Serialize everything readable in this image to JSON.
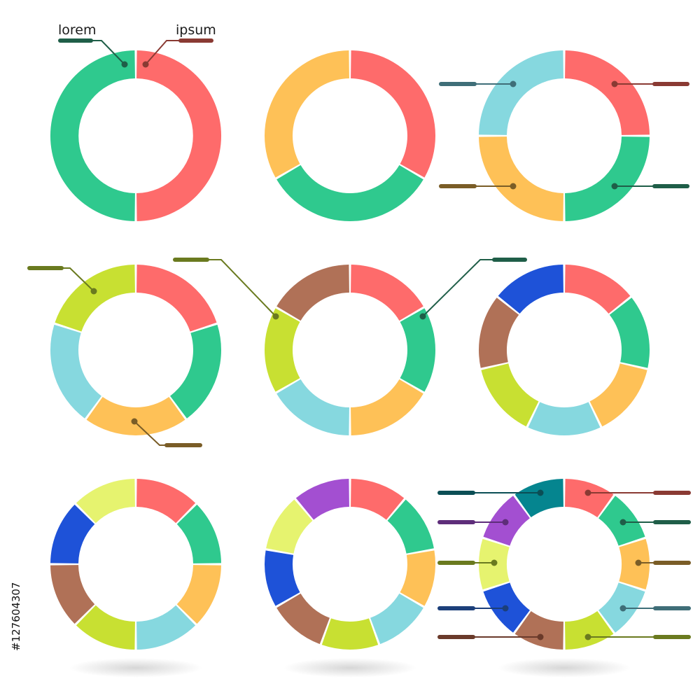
{
  "palette": {
    "red": "#fe6b6b",
    "green": "#2fc98e",
    "orange": "#fec157",
    "lightblue": "#86d8df",
    "yellowgreen": "#c8e032",
    "brown": "#b07157",
    "blue": "#1e52d8",
    "paleyellow": "#e6f36f",
    "purple": "#a34fd1",
    "teal": "#05858f"
  },
  "labels": {
    "left": "lorem",
    "right": "ipsum"
  },
  "watermark": "#127604307",
  "diagrams": [
    {
      "name": "two-segments",
      "segments": [
        "red",
        "green"
      ],
      "has_shadow": false
    },
    {
      "name": "three-segments",
      "segments": [
        "red",
        "green",
        "orange"
      ],
      "has_shadow": false
    },
    {
      "name": "four-segments",
      "segments": [
        "red",
        "green",
        "orange",
        "lightblue"
      ],
      "has_shadow": false
    },
    {
      "name": "five-segments",
      "segments": [
        "red",
        "green",
        "orange",
        "lightblue",
        "yellowgreen"
      ],
      "has_shadow": false
    },
    {
      "name": "six-segments",
      "segments": [
        "red",
        "green",
        "orange",
        "lightblue",
        "yellowgreen",
        "brown"
      ],
      "has_shadow": false
    },
    {
      "name": "seven-segments",
      "segments": [
        "red",
        "green",
        "orange",
        "lightblue",
        "yellowgreen",
        "brown",
        "blue"
      ],
      "has_shadow": false
    },
    {
      "name": "eight-segments",
      "segments": [
        "red",
        "green",
        "orange",
        "lightblue",
        "yellowgreen",
        "brown",
        "blue",
        "paleyellow"
      ],
      "has_shadow": true
    },
    {
      "name": "nine-segments",
      "segments": [
        "red",
        "green",
        "orange",
        "lightblue",
        "yellowgreen",
        "brown",
        "blue",
        "paleyellow",
        "purple"
      ],
      "has_shadow": true
    },
    {
      "name": "ten-segments",
      "segments": [
        "red",
        "green",
        "orange",
        "lightblue",
        "yellowgreen",
        "brown",
        "blue",
        "paleyellow",
        "purple",
        "teal"
      ],
      "has_shadow": true
    }
  ],
  "callout_colors": {
    "dark_green": "#1f5e48",
    "dark_red": "#8a3a33",
    "slate": "#3f6e78",
    "olive_brown": "#7a5d27",
    "olive": "#6a7a1f",
    "navy": "#1c3f7a",
    "plum": "#5e2d7a",
    "dark_teal": "#0b4e55",
    "dark_brown": "#6a3a2a"
  }
}
